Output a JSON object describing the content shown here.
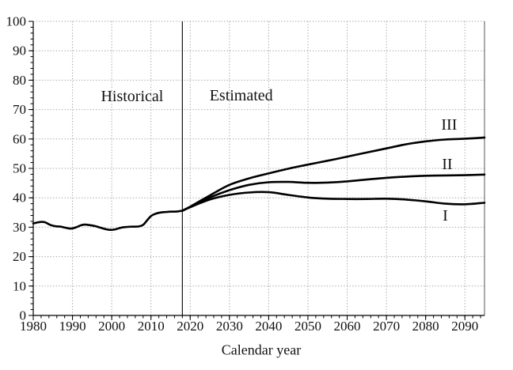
{
  "chart_data": {
    "type": "line",
    "title": "",
    "xlabel": "Calendar year",
    "ylabel": "",
    "xlim": [
      1980,
      2095
    ],
    "ylim": [
      0,
      100
    ],
    "x_ticks": [
      1980,
      1990,
      2000,
      2010,
      2020,
      2030,
      2040,
      2050,
      2060,
      2070,
      2080,
      2090
    ],
    "y_ticks": [
      0,
      10,
      20,
      30,
      40,
      50,
      60,
      70,
      80,
      90,
      100
    ],
    "x_minor_step": 2,
    "y_minor_step": 2,
    "grid": "dotted",
    "divider_x": 2018,
    "legend_position": "inline-right",
    "annotations": [
      {
        "text": "Historical",
        "x": 2005.2,
        "y": 74.4
      },
      {
        "text": "Estimated",
        "x": 2033.0,
        "y": 74.6
      },
      {
        "text": "III",
        "x": 2086.0,
        "y": 64.9
      },
      {
        "text": "II",
        "x": 2085.5,
        "y": 51.4
      },
      {
        "text": "I",
        "x": 2085.0,
        "y": 33.8
      }
    ],
    "series": [
      {
        "name": "Historical",
        "x": [
          1980,
          1981,
          1982,
          1983,
          1984,
          1985,
          1986,
          1987,
          1988,
          1989,
          1990,
          1991,
          1992,
          1993,
          1994,
          1995,
          1996,
          1997,
          1998,
          1999,
          2000,
          2001,
          2002,
          2003,
          2004,
          2005,
          2006,
          2007,
          2008,
          2009,
          2010,
          2011,
          2012,
          2013,
          2014,
          2015,
          2016,
          2017,
          2018
        ],
        "y": [
          31.3,
          31.6,
          31.8,
          31.7,
          31.0,
          30.5,
          30.3,
          30.2,
          29.9,
          29.6,
          29.6,
          30.0,
          30.6,
          30.9,
          30.8,
          30.6,
          30.3,
          29.9,
          29.5,
          29.2,
          29.1,
          29.3,
          29.7,
          30.0,
          30.1,
          30.2,
          30.2,
          30.3,
          30.8,
          32.3,
          33.8,
          34.5,
          34.9,
          35.1,
          35.2,
          35.3,
          35.3,
          35.4,
          35.6
        ]
      },
      {
        "name": "III",
        "x": [
          2018,
          2020,
          2025,
          2030,
          2035,
          2040,
          2045,
          2050,
          2055,
          2060,
          2065,
          2070,
          2075,
          2080,
          2085,
          2090,
          2095
        ],
        "y": [
          35.6,
          37.0,
          40.8,
          44.4,
          46.6,
          48.3,
          49.9,
          51.3,
          52.6,
          54.0,
          55.4,
          56.8,
          58.2,
          59.2,
          59.8,
          60.1,
          60.5
        ]
      },
      {
        "name": "II",
        "x": [
          2018,
          2020,
          2025,
          2030,
          2035,
          2040,
          2045,
          2050,
          2055,
          2060,
          2065,
          2070,
          2075,
          2080,
          2085,
          2090,
          2095
        ],
        "y": [
          35.6,
          36.9,
          40.1,
          42.6,
          44.4,
          45.3,
          45.4,
          45.1,
          45.2,
          45.6,
          46.2,
          46.8,
          47.2,
          47.5,
          47.6,
          47.7,
          47.9
        ]
      },
      {
        "name": "I",
        "x": [
          2018,
          2020,
          2025,
          2030,
          2035,
          2040,
          2045,
          2050,
          2055,
          2060,
          2065,
          2070,
          2075,
          2080,
          2085,
          2090,
          2095
        ],
        "y": [
          35.6,
          36.8,
          39.4,
          41.0,
          41.8,
          41.9,
          41.0,
          40.1,
          39.7,
          39.6,
          39.6,
          39.7,
          39.4,
          38.8,
          38.0,
          37.8,
          38.3
        ]
      }
    ]
  },
  "colors": {
    "line": "#000000",
    "grid": "#9a9a9a",
    "axis": "#000000",
    "divider": "#000000",
    "right_border": "#555555",
    "text": "#111111",
    "background": "#ffffff"
  }
}
